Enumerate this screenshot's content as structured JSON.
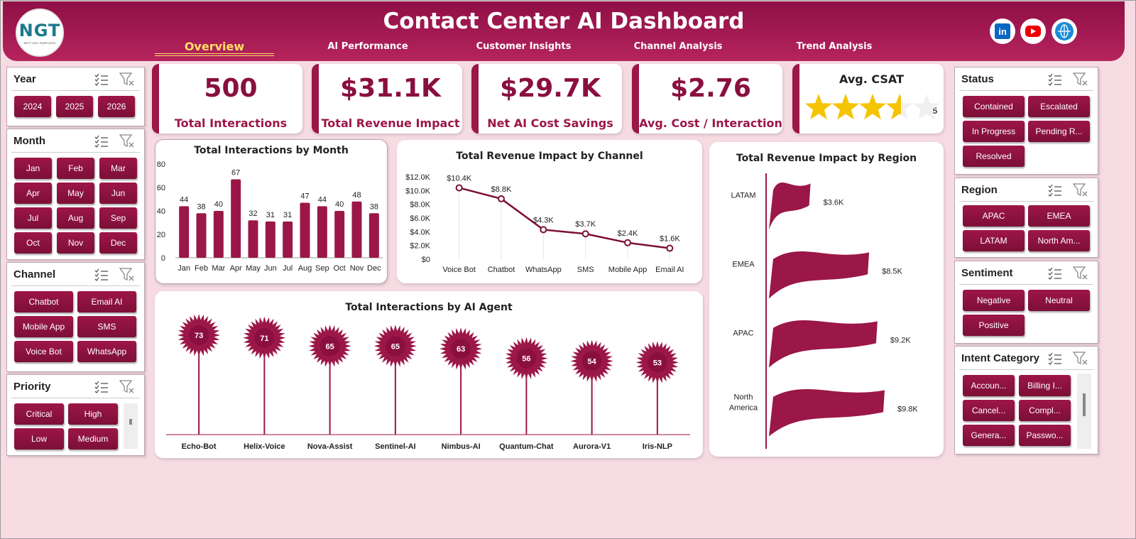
{
  "header": {
    "title": "Contact Center AI Dashboard",
    "logo_text": "NGT",
    "logo_sub": "NEXT GEN TEMPLATES",
    "tabs": [
      "Overview",
      "AI Performance",
      "Customer Insights",
      "Channel Analysis",
      "Trend Analysis"
    ],
    "active_tab": "Overview",
    "social": [
      "linkedin-icon",
      "youtube-icon",
      "globe-icon"
    ]
  },
  "slicers": {
    "year": {
      "title": "Year",
      "items": [
        "2024",
        "2025",
        "2026"
      ]
    },
    "month": {
      "title": "Month",
      "items": [
        "Jan",
        "Feb",
        "Mar",
        "Apr",
        "May",
        "Jun",
        "Jul",
        "Aug",
        "Sep",
        "Oct",
        "Nov",
        "Dec"
      ]
    },
    "channel": {
      "title": "Channel",
      "items": [
        "Chatbot",
        "Email AI",
        "Mobile App",
        "SMS",
        "Voice Bot",
        "WhatsApp"
      ]
    },
    "priority": {
      "title": "Priority",
      "items": [
        "Critical",
        "High",
        "Low",
        "Medium"
      ]
    },
    "status": {
      "title": "Status",
      "items": [
        "Contained",
        "Escalated",
        "In Progress",
        "Pending R...",
        "Resolved"
      ]
    },
    "region": {
      "title": "Region",
      "items": [
        "APAC",
        "EMEA",
        "LATAM",
        "North Am..."
      ]
    },
    "sentiment": {
      "title": "Sentiment",
      "items": [
        "Negative",
        "Neutral",
        "Positive"
      ]
    },
    "intent": {
      "title": "Intent Category",
      "items": [
        "Accoun...",
        "Billing I...",
        "Cancel...",
        "Compl...",
        "Genera...",
        "Passwo..."
      ]
    }
  },
  "kpis": [
    {
      "value": "500",
      "label": "Total Interactions"
    },
    {
      "value": "$31.1K",
      "label": "Total Revenue Impact"
    },
    {
      "value": "$29.7K",
      "label": "Net AI Cost Savings"
    },
    {
      "value": "$2.76",
      "label": "Avg. Cost / Interaction"
    }
  ],
  "csat": {
    "title": "Avg. CSAT",
    "value": "3.55",
    "rating": 3.55,
    "max": 5
  },
  "colors": {
    "primary": "#9b1748",
    "accent": "#ffe066",
    "star": "#f5c400",
    "background": "#f7dbe3"
  },
  "chart_data": [
    {
      "type": "bar",
      "title": "Total Interactions by Month",
      "categories": [
        "Jan",
        "Feb",
        "Mar",
        "Apr",
        "May",
        "Jun",
        "Jul",
        "Aug",
        "Sep",
        "Oct",
        "Nov",
        "Dec"
      ],
      "values": [
        44,
        38,
        40,
        67,
        32,
        31,
        31,
        47,
        44,
        40,
        48,
        38
      ],
      "ylim": [
        0,
        80
      ],
      "yticks": [
        "0",
        "20",
        "40",
        "60",
        "80"
      ]
    },
    {
      "type": "line",
      "title": "Total Revenue Impact by Channel",
      "categories": [
        "Voice Bot",
        "Chatbot",
        "WhatsApp",
        "SMS",
        "Mobile App",
        "Email AI"
      ],
      "values": [
        10.4,
        8.8,
        4.3,
        3.7,
        2.4,
        1.6
      ],
      "labels": [
        "$10.4K",
        "$8.8K",
        "$4.3K",
        "$3.7K",
        "$2.4K",
        "$1.6K"
      ],
      "ylim": [
        0,
        12
      ],
      "yticks": [
        "$0",
        "$2.0K",
        "$4.0K",
        "$6.0K",
        "$8.0K",
        "$10.0K",
        "$12.0K"
      ]
    },
    {
      "type": "bar",
      "title": "Total Revenue Impact by Region",
      "categories": [
        "LATAM",
        "EMEA",
        "APAC",
        "North America"
      ],
      "values": [
        3.6,
        8.5,
        9.2,
        9.8
      ],
      "labels": [
        "$3.6K",
        "$8.5K",
        "$9.2K",
        "$9.8K"
      ]
    },
    {
      "type": "bar",
      "title": "Total Interactions by AI Agent",
      "categories": [
        "Echo-Bot",
        "Helix-Voice",
        "Nova-Assist",
        "Sentinel-AI",
        "Nimbus-AI",
        "Quantum-Chat",
        "Aurora-V1",
        "Iris-NLP"
      ],
      "values": [
        73,
        71,
        65,
        65,
        63,
        56,
        54,
        53
      ]
    }
  ]
}
